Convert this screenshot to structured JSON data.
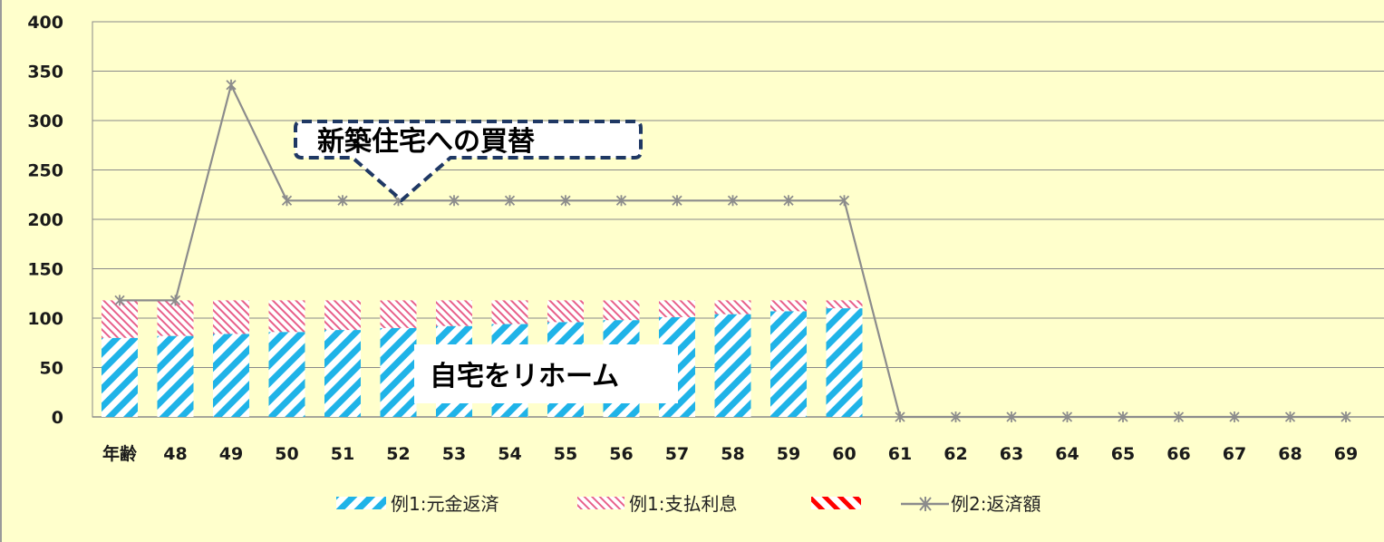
{
  "chart_data": {
    "type": "bar",
    "categories": [
      "年齢",
      "48",
      "49",
      "50",
      "51",
      "52",
      "53",
      "54",
      "55",
      "56",
      "57",
      "58",
      "59",
      "60",
      "61",
      "62",
      "63",
      "64",
      "65",
      "66",
      "67",
      "68",
      "69"
    ],
    "ylim": [
      0,
      400
    ],
    "yticks": [
      "400",
      "350",
      "300",
      "250",
      "200",
      "150",
      "100",
      "50",
      "0"
    ],
    "grid": true,
    "legend_position": "bottom",
    "series": [
      {
        "name": "例1:元金返済",
        "kind": "bar",
        "color": "#1FB3E8",
        "values": [
          80,
          82,
          84,
          86,
          88,
          90,
          92,
          94,
          96,
          98,
          101,
          104,
          107,
          110,
          null,
          null,
          null,
          null,
          null,
          null,
          null,
          null,
          null
        ]
      },
      {
        "name": "例1:支払利息",
        "kind": "bar",
        "color": "#E8608A",
        "values": [
          38,
          36,
          34,
          32,
          30,
          28,
          26,
          24,
          22,
          20,
          17,
          14,
          11,
          8,
          null,
          null,
          null,
          null,
          null,
          null,
          null,
          null,
          null
        ]
      },
      {
        "name": "",
        "kind": "legend-only",
        "color": "#FF0000"
      },
      {
        "name": "例2:返済額",
        "kind": "line",
        "color": "#8C8C8C",
        "values": [
          118,
          118,
          336,
          219,
          219,
          219,
          219,
          219,
          219,
          219,
          219,
          219,
          219,
          219,
          0,
          0,
          0,
          0,
          0,
          0,
          0,
          0,
          0
        ]
      }
    ],
    "annotations": [
      {
        "text": "新築住宅への買替",
        "style": "dashed-callout"
      },
      {
        "text": "自宅をリホーム",
        "style": "box"
      }
    ]
  }
}
